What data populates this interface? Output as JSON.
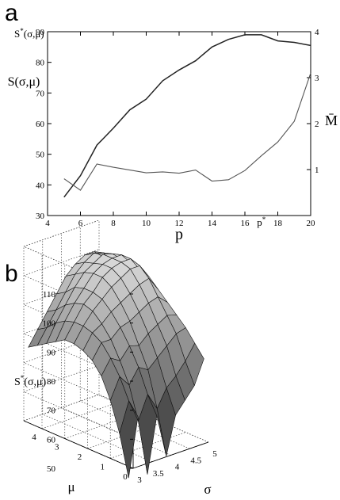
{
  "panel_labels": [
    "a",
    "b"
  ],
  "chart_data": [
    {
      "type": "line",
      "panel": "a",
      "xlabel": "p",
      "ylabel": "S(σ,μ)",
      "ylabel_top": "S*(σ,μ)",
      "y2label": "M̄",
      "x_marker_label": "p*",
      "x_marker": 17,
      "xlim": [
        4,
        20
      ],
      "ylim": [
        30,
        90
      ],
      "y2lim": [
        0,
        4
      ],
      "xticks": [
        4,
        6,
        8,
        10,
        12,
        14,
        16,
        18,
        20
      ],
      "yticks": [
        30,
        40,
        50,
        60,
        70,
        80,
        90
      ],
      "y2ticks": [
        1,
        2,
        3,
        4
      ],
      "grid": false,
      "series": [
        {
          "axis": "left",
          "x": [
            5,
            6,
            7,
            8,
            9,
            10,
            11,
            12,
            13,
            14,
            15,
            16,
            17,
            18,
            19,
            20
          ],
          "y": [
            36,
            43,
            53,
            58.5,
            64.5,
            68,
            74,
            77.5,
            80.5,
            85,
            87.5,
            89,
            89,
            87,
            86.5,
            85.5
          ]
        },
        {
          "axis": "right",
          "x": [
            5,
            6,
            7,
            8,
            9,
            10,
            11,
            12,
            13,
            14,
            15,
            16,
            17,
            18,
            19,
            20
          ],
          "y": [
            0.8,
            0.55,
            1.12,
            1.05,
            0.99,
            0.93,
            0.95,
            0.92,
            0.99,
            0.75,
            0.78,
            0.98,
            1.3,
            1.6,
            2.05,
            3.1
          ]
        }
      ]
    },
    {
      "type": "surface",
      "panel": "b",
      "xlabel": "σ",
      "ylabel": "μ",
      "zlabel": "S*(σ,μ)",
      "xlim": [
        3,
        5
      ],
      "ylim": [
        0,
        4.8
      ],
      "zlim": [
        50,
        110
      ],
      "xticks": [
        3,
        3.5,
        4,
        4.5,
        5
      ],
      "yticks": [
        0,
        1,
        2,
        3,
        4
      ],
      "zticks": [
        50,
        60,
        70,
        80,
        90,
        100,
        110
      ],
      "grid": true,
      "surface": {
        "sigma": [
          3.0,
          3.25,
          3.5,
          3.75,
          4.0,
          4.25,
          4.5,
          4.75,
          5.0
        ],
        "mu": [
          0.2,
          0.6,
          1.0,
          1.4,
          1.8,
          2.2,
          2.6,
          3.0,
          3.4,
          3.8,
          4.2,
          4.6
        ],
        "z": [
          [
            46,
            66,
            45,
            64,
            49,
            62,
            66,
            70,
            78
          ],
          [
            60,
            70,
            62,
            70,
            64,
            70,
            73,
            77,
            82
          ],
          [
            70,
            77,
            73,
            78,
            76,
            79,
            82,
            85,
            86
          ],
          [
            77,
            82,
            80,
            84,
            83,
            86,
            88,
            90,
            89
          ],
          [
            81,
            86,
            86,
            89,
            90,
            92,
            94,
            95,
            92
          ],
          [
            83,
            88,
            90,
            93,
            95,
            97,
            99,
            100,
            95
          ],
          [
            84,
            89,
            93,
            96,
            99,
            101,
            103,
            103,
            98
          ],
          [
            84,
            89,
            94,
            97,
            101,
            103,
            104,
            104,
            99
          ],
          [
            82,
            88,
            93,
            97,
            101,
            103,
            104,
            104,
            100
          ],
          [
            80,
            86,
            91,
            96,
            100,
            102,
            104,
            103,
            100
          ],
          [
            78,
            83,
            88,
            93,
            98,
            101,
            103,
            102,
            99
          ],
          [
            76,
            81,
            86,
            91,
            96,
            99,
            101,
            101,
            98
          ]
        ]
      }
    }
  ]
}
